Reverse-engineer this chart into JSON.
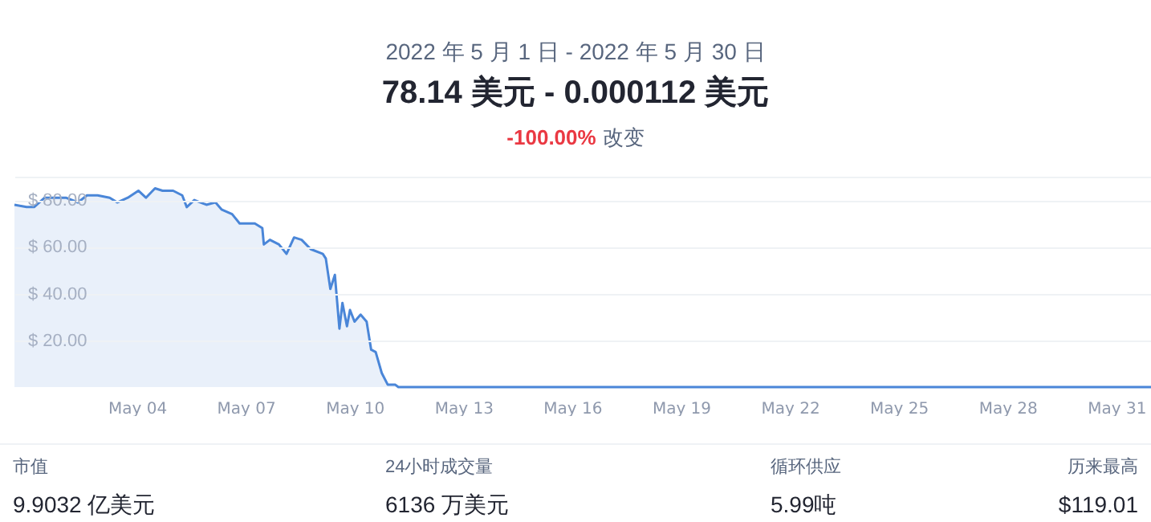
{
  "chart_data": {
    "type": "area",
    "subtitle": "2022 年 5 月 1 日 - 2022 年 5 月 30 日",
    "title": "78.14 美元 - 0.000112 美元",
    "annotations": [
      "-100.00%",
      "改变",
      "市值",
      "9.9032 亿美元",
      "24小时成交量",
      "6136 万美元",
      "循环供应",
      "5.99吨",
      "历来最高",
      "$119.01"
    ],
    "x": [
      "2022-04-30T15:00",
      "2022-04-30T23:00",
      "2022-05-01T04:00",
      "2022-05-01T11:00",
      "2022-05-01T18:00",
      "2022-05-02T01:00",
      "2022-05-02T09:00",
      "2022-05-02T15:00",
      "2022-05-02T22:00",
      "2022-05-03T06:00",
      "2022-05-03T11:00",
      "2022-05-03T18:00",
      "2022-05-04T01:00",
      "2022-05-04T06:00",
      "2022-05-04T12:00",
      "2022-05-04T17:00",
      "2022-05-05T00:00",
      "2022-05-05T06:00",
      "2022-05-05T09:00",
      "2022-05-05T14:00",
      "2022-05-05T22:00",
      "2022-05-06T04:00",
      "2022-05-06T08:00",
      "2022-05-06T15:00",
      "2022-05-06T20:00",
      "2022-05-07T06:00",
      "2022-05-07T11:00",
      "2022-05-07T12:00",
      "2022-05-07T16:00",
      "2022-05-07T22:00",
      "2022-05-08T03:00",
      "2022-05-08T08:00",
      "2022-05-08T13:00",
      "2022-05-08T19:00",
      "2022-05-09T03:00",
      "2022-05-09T05:00",
      "2022-05-09T08:00",
      "2022-05-09T11:00",
      "2022-05-09T14:00",
      "2022-05-09T16:00",
      "2022-05-09T19:00",
      "2022-05-09T21:00",
      "2022-05-10T00:00",
      "2022-05-10T04:00",
      "2022-05-10T08:00",
      "2022-05-10T11:00",
      "2022-05-10T14:00",
      "2022-05-10T18:00",
      "2022-05-10T22:00",
      "2022-05-11T03:00",
      "2022-05-11T05:00",
      "2022-05-11T16:00",
      "2022-05-11T22:00",
      "2022-05-12T12:00",
      "2022-05-14T00:00",
      "2022-05-18T00:00",
      "2022-05-22T00:00",
      "2022-05-26T00:00",
      "2022-06-01T00:00"
    ],
    "series": [
      {
        "color": "#4a86d8",
        "values": [
          78,
          77,
          77,
          81,
          81,
          81,
          79,
          82,
          82,
          81,
          79,
          81,
          84,
          81,
          85,
          84,
          84,
          82,
          77,
          80,
          78,
          79,
          76,
          74,
          70,
          70,
          68,
          61,
          63,
          61,
          57,
          64,
          63,
          59,
          57,
          55,
          42,
          48,
          25,
          36,
          26,
          33,
          28,
          31,
          28,
          16,
          15,
          6,
          1,
          1,
          0,
          0,
          0,
          0,
          0,
          0,
          0,
          0,
          0
        ]
      }
    ],
    "xlim": [
      "2022-04-30T15:00",
      "2022-06-01T00:00"
    ],
    "xticks": [
      {
        "value": "2022-05-04",
        "label": "May 04"
      },
      {
        "value": "2022-05-07",
        "label": "May 07"
      },
      {
        "value": "2022-05-10",
        "label": "May 10"
      },
      {
        "value": "2022-05-13",
        "label": "May 13"
      },
      {
        "value": "2022-05-16",
        "label": "May 16"
      },
      {
        "value": "2022-05-19",
        "label": "May 19"
      },
      {
        "value": "2022-05-22",
        "label": "May 22"
      },
      {
        "value": "2022-05-25",
        "label": "May 25"
      },
      {
        "value": "2022-05-28",
        "label": "May 28"
      },
      {
        "value": "2022-05-31",
        "label": "May 31"
      }
    ],
    "ylim": [
      0,
      90
    ],
    "yticks": [
      {
        "value": 20,
        "label": "$ 20.00"
      },
      {
        "value": 40,
        "label": "$ 40.00"
      },
      {
        "value": 60,
        "label": "$ 60.00"
      },
      {
        "value": 80,
        "label": "$ 80.00"
      },
      {
        "value": 90,
        "label": null
      }
    ],
    "grid": "y",
    "marker": "none",
    "line_style": "solid"
  }
}
